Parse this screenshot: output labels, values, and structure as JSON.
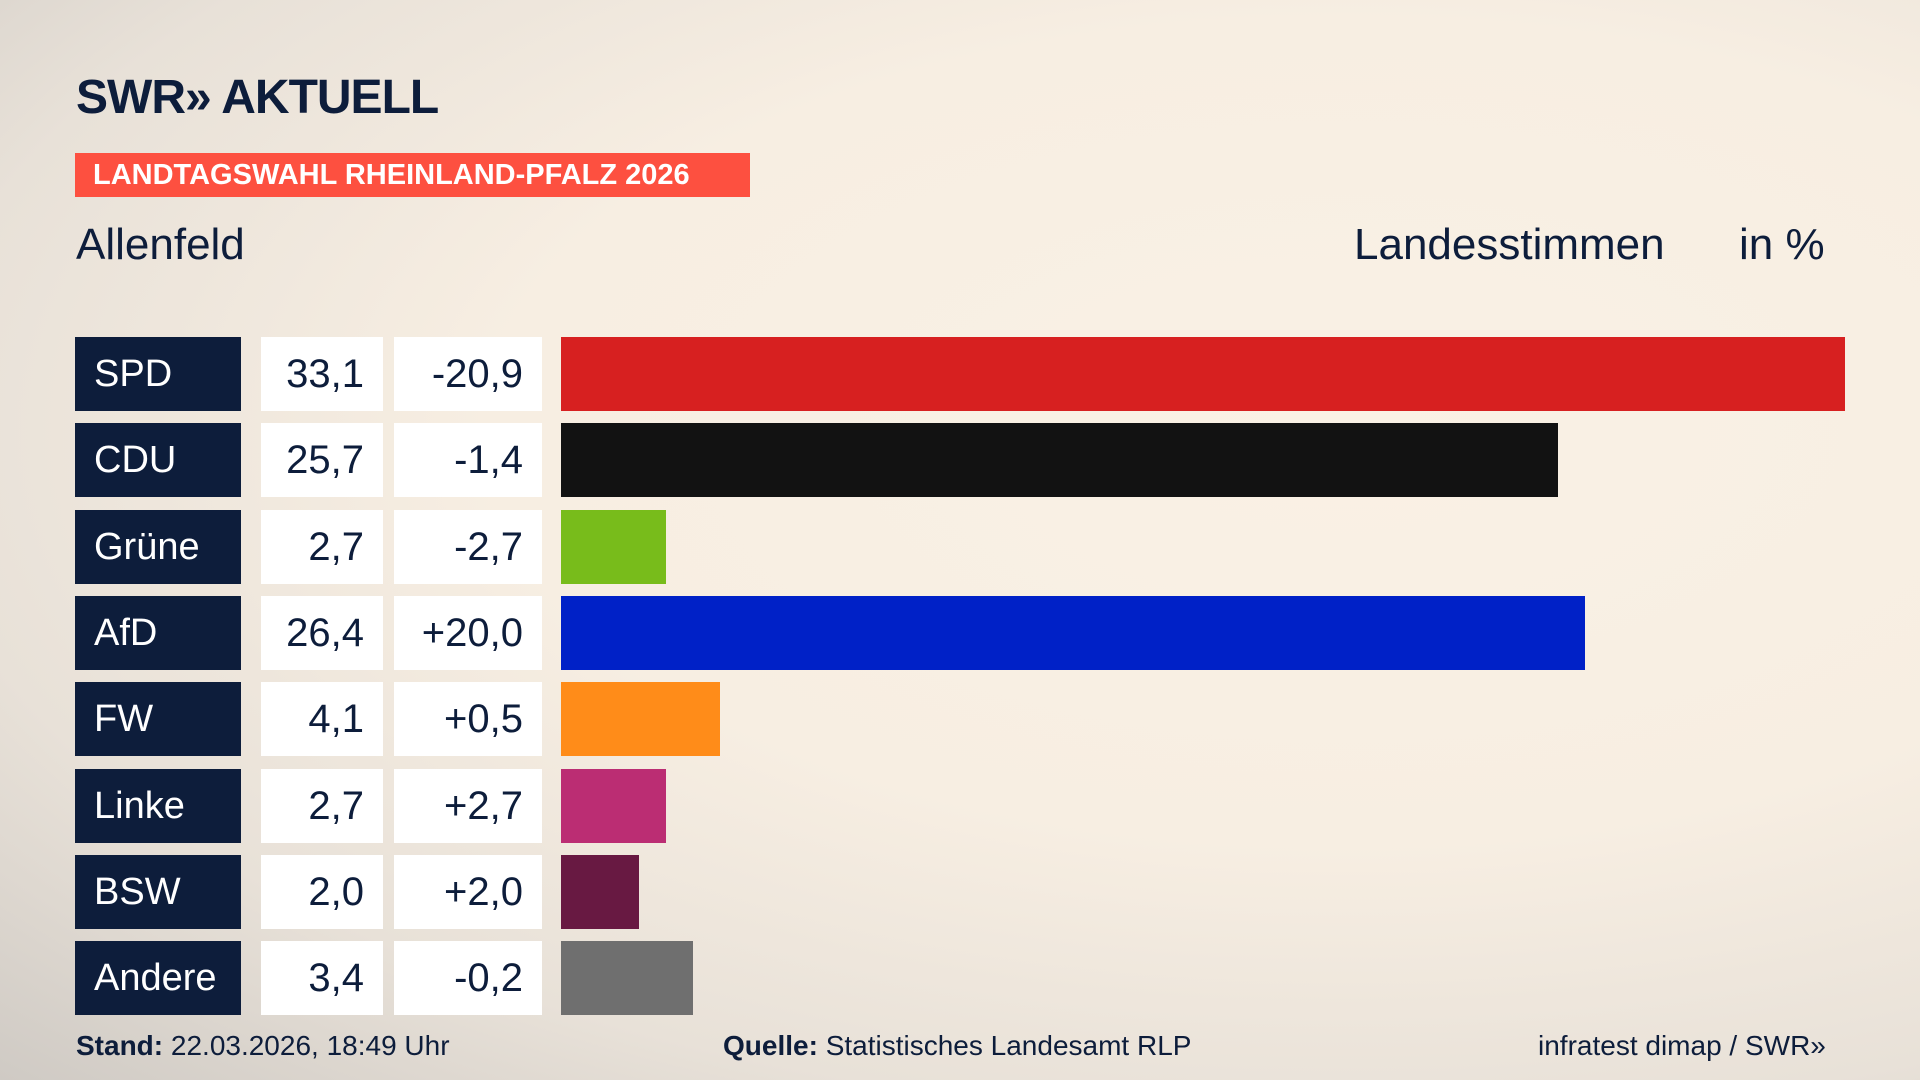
{
  "header": {
    "logo": "SWR» AKTUELL",
    "banner": "LANDTAGSWAHL RHEINLAND-PFALZ 2026",
    "place": "Allenfeld",
    "label": "Landesstimmen",
    "unit": "in %"
  },
  "chart_data": {
    "type": "bar",
    "orientation": "horizontal",
    "categories": [
      "SPD",
      "CDU",
      "Grüne",
      "AfD",
      "FW",
      "Linke",
      "BSW",
      "Andere"
    ],
    "values": [
      33.1,
      25.7,
      2.7,
      26.4,
      4.1,
      2.7,
      2.0,
      3.4
    ],
    "values_label": [
      "33,1",
      "25,7",
      "2,7",
      "26,4",
      "4,1",
      "2,7",
      "2,0",
      "3,4"
    ],
    "diff": [
      "-20,9",
      "-1,4",
      "-2,7",
      "+20,0",
      "+0,5",
      "+2,7",
      "+2,0",
      "-0,2"
    ],
    "colors": [
      "#d72020",
      "#121212",
      "#78bc1b",
      "#0021c7",
      "#ff8c19",
      "#bb2d73",
      "#681942",
      "#6f6f6f"
    ],
    "xlim": [
      0,
      33.1
    ]
  },
  "footer": {
    "stand_label": "Stand:",
    "stand": "22.03.2026, 18:49 Uhr",
    "source_label": "Quelle:",
    "source": "Statistisches Landesamt RLP",
    "credit": "infratest dimap / SWR»"
  }
}
